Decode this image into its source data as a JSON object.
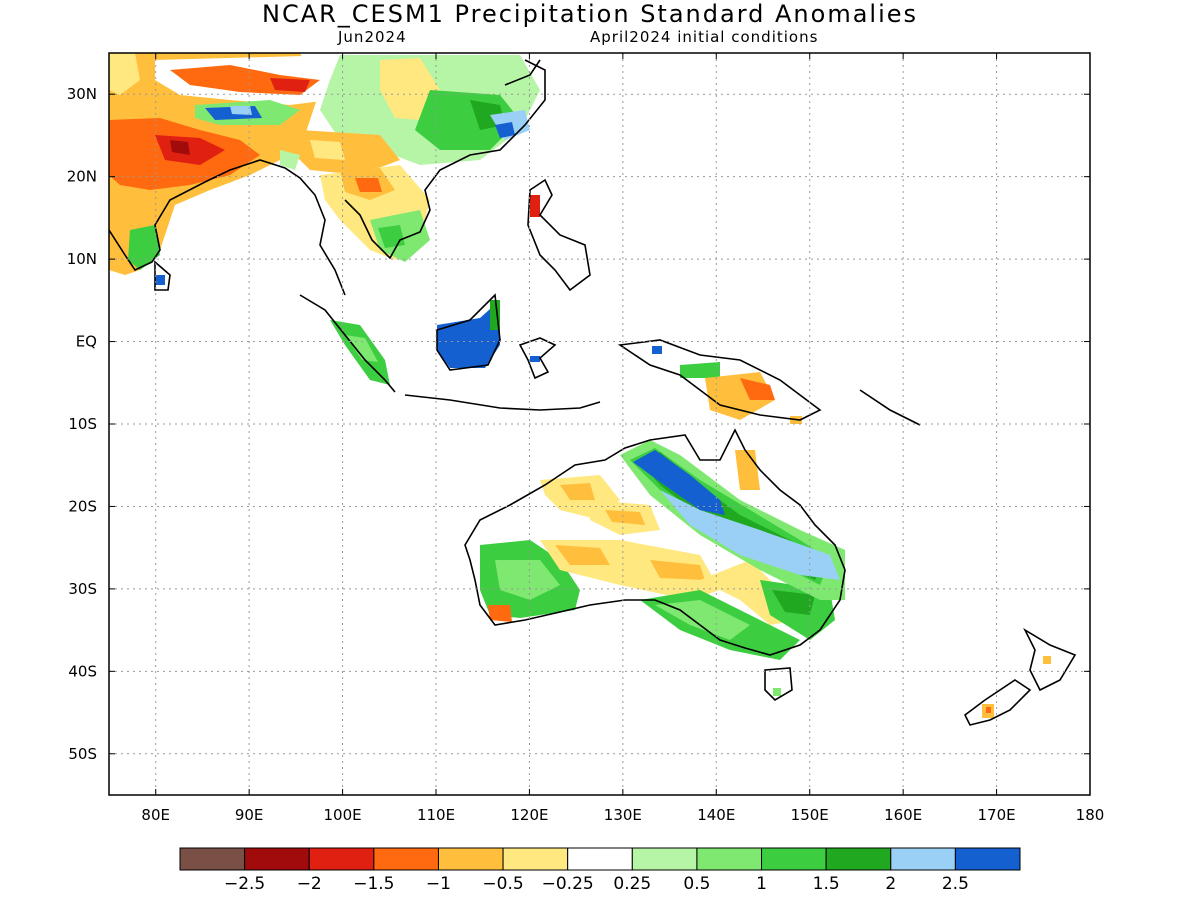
{
  "title": "NCAR_CESM1 Precipitation Standard Anomalies",
  "subtitle_left": "Jun2024",
  "subtitle_right": "April2024 initial conditions",
  "map": {
    "lon_range": [
      75,
      180
    ],
    "lat_range": [
      -55,
      35
    ],
    "lat_ticks": [
      {
        "value": 30,
        "label": "30N"
      },
      {
        "value": 20,
        "label": "20N"
      },
      {
        "value": 10,
        "label": "10N"
      },
      {
        "value": 0,
        "label": "EQ"
      },
      {
        "value": -10,
        "label": "10S"
      },
      {
        "value": -20,
        "label": "20S"
      },
      {
        "value": -30,
        "label": "30S"
      },
      {
        "value": -40,
        "label": "40S"
      },
      {
        "value": -50,
        "label": "50S"
      }
    ],
    "lon_ticks": [
      {
        "value": 80,
        "label": "80E"
      },
      {
        "value": 90,
        "label": "90E"
      },
      {
        "value": 100,
        "label": "100E"
      },
      {
        "value": 110,
        "label": "110E"
      },
      {
        "value": 120,
        "label": "120E"
      },
      {
        "value": 130,
        "label": "130E"
      },
      {
        "value": 140,
        "label": "140E"
      },
      {
        "value": 150,
        "label": "150E"
      },
      {
        "value": 160,
        "label": "160E"
      },
      {
        "value": 170,
        "label": "170E"
      },
      {
        "value": 180,
        "label": "180"
      }
    ]
  },
  "colorbar": {
    "colors": [
      "#7a5046",
      "#a10b0b",
      "#e02010",
      "#ff6a10",
      "#ffbf3c",
      "#ffe880",
      "#ffffff",
      "#b5f5a5",
      "#7ee870",
      "#3ccd40",
      "#20a820",
      "#9ad0f5",
      "#1560d0"
    ],
    "labels": [
      "−2.5",
      "−2",
      "−1.5",
      "−1",
      "−0.5",
      "−0.25",
      "0.25",
      "0.5",
      "1",
      "1.5",
      "2",
      "2.5"
    ]
  }
}
